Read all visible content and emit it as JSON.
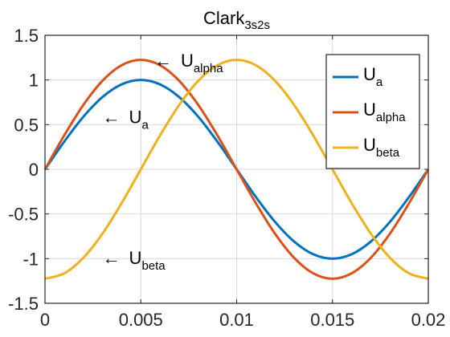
{
  "chart_data": {
    "type": "line",
    "title": "Clark",
    "title_subscript": "3s2s",
    "xlabel": "",
    "ylabel": "",
    "xlim": [
      0,
      0.02
    ],
    "ylim": [
      -1.5,
      1.5
    ],
    "xticks": [
      0,
      0.005,
      0.01,
      0.015,
      0.02
    ],
    "xtick_labels": [
      "0",
      "0.005",
      "0.01",
      "0.015",
      "0.02"
    ],
    "yticks": [
      1.5,
      1,
      0.5,
      0,
      -0.5,
      -1,
      -1.5
    ],
    "ytick_labels": [
      "1.5",
      "1",
      "0.5",
      "0",
      "-0.5",
      "-1",
      "-1.5"
    ],
    "grid": true,
    "legend_position": "top-right",
    "series": [
      {
        "name": "U",
        "name_subscript": "a",
        "color": "#0072BD",
        "x": [
          0,
          0.001,
          0.002,
          0.003,
          0.004,
          0.005,
          0.006,
          0.007,
          0.008,
          0.009,
          0.01,
          0.011,
          0.012,
          0.013,
          0.014,
          0.015,
          0.016,
          0.017,
          0.018,
          0.019,
          0.02
        ],
        "y": [
          0,
          0.309,
          0.588,
          0.809,
          0.951,
          1.0,
          0.951,
          0.809,
          0.588,
          0.309,
          0,
          -0.309,
          -0.588,
          -0.809,
          -0.951,
          -1.0,
          -0.951,
          -0.809,
          -0.588,
          -0.309,
          0
        ]
      },
      {
        "name": "U",
        "name_subscript": "alpha",
        "color": "#D95319",
        "x": [
          0,
          0.001,
          0.002,
          0.003,
          0.004,
          0.005,
          0.006,
          0.007,
          0.008,
          0.009,
          0.01,
          0.011,
          0.012,
          0.013,
          0.014,
          0.015,
          0.016,
          0.017,
          0.018,
          0.019,
          0.02
        ],
        "y": [
          0,
          0.378,
          0.72,
          0.991,
          1.165,
          1.225,
          1.165,
          0.991,
          0.72,
          0.378,
          0,
          -0.378,
          -0.72,
          -0.991,
          -1.165,
          -1.225,
          -1.165,
          -0.991,
          -0.72,
          -0.378,
          0
        ]
      },
      {
        "name": "U",
        "name_subscript": "beta",
        "color": "#EDB120",
        "x": [
          0,
          0.001,
          0.002,
          0.003,
          0.004,
          0.005,
          0.006,
          0.007,
          0.008,
          0.009,
          0.01,
          0.011,
          0.012,
          0.013,
          0.014,
          0.015,
          0.016,
          0.017,
          0.018,
          0.019,
          0.02
        ],
        "y": [
          -1.225,
          -1.165,
          -0.991,
          -0.72,
          -0.378,
          0,
          0.378,
          0.72,
          0.991,
          1.165,
          1.225,
          1.165,
          0.991,
          0.72,
          0.378,
          0,
          -0.378,
          -0.72,
          -0.991,
          -1.165,
          -1.225
        ]
      }
    ],
    "annotations": [
      {
        "arrow": "←",
        "text": "U",
        "subscript": "alpha",
        "x": 0.0057,
        "y": 1.22
      },
      {
        "arrow": "←",
        "text": "U",
        "subscript": "a",
        "x": 0.003,
        "y": 0.59
      },
      {
        "arrow": "←",
        "text": "U",
        "subscript": "beta",
        "x": 0.003,
        "y": -0.99
      }
    ]
  }
}
